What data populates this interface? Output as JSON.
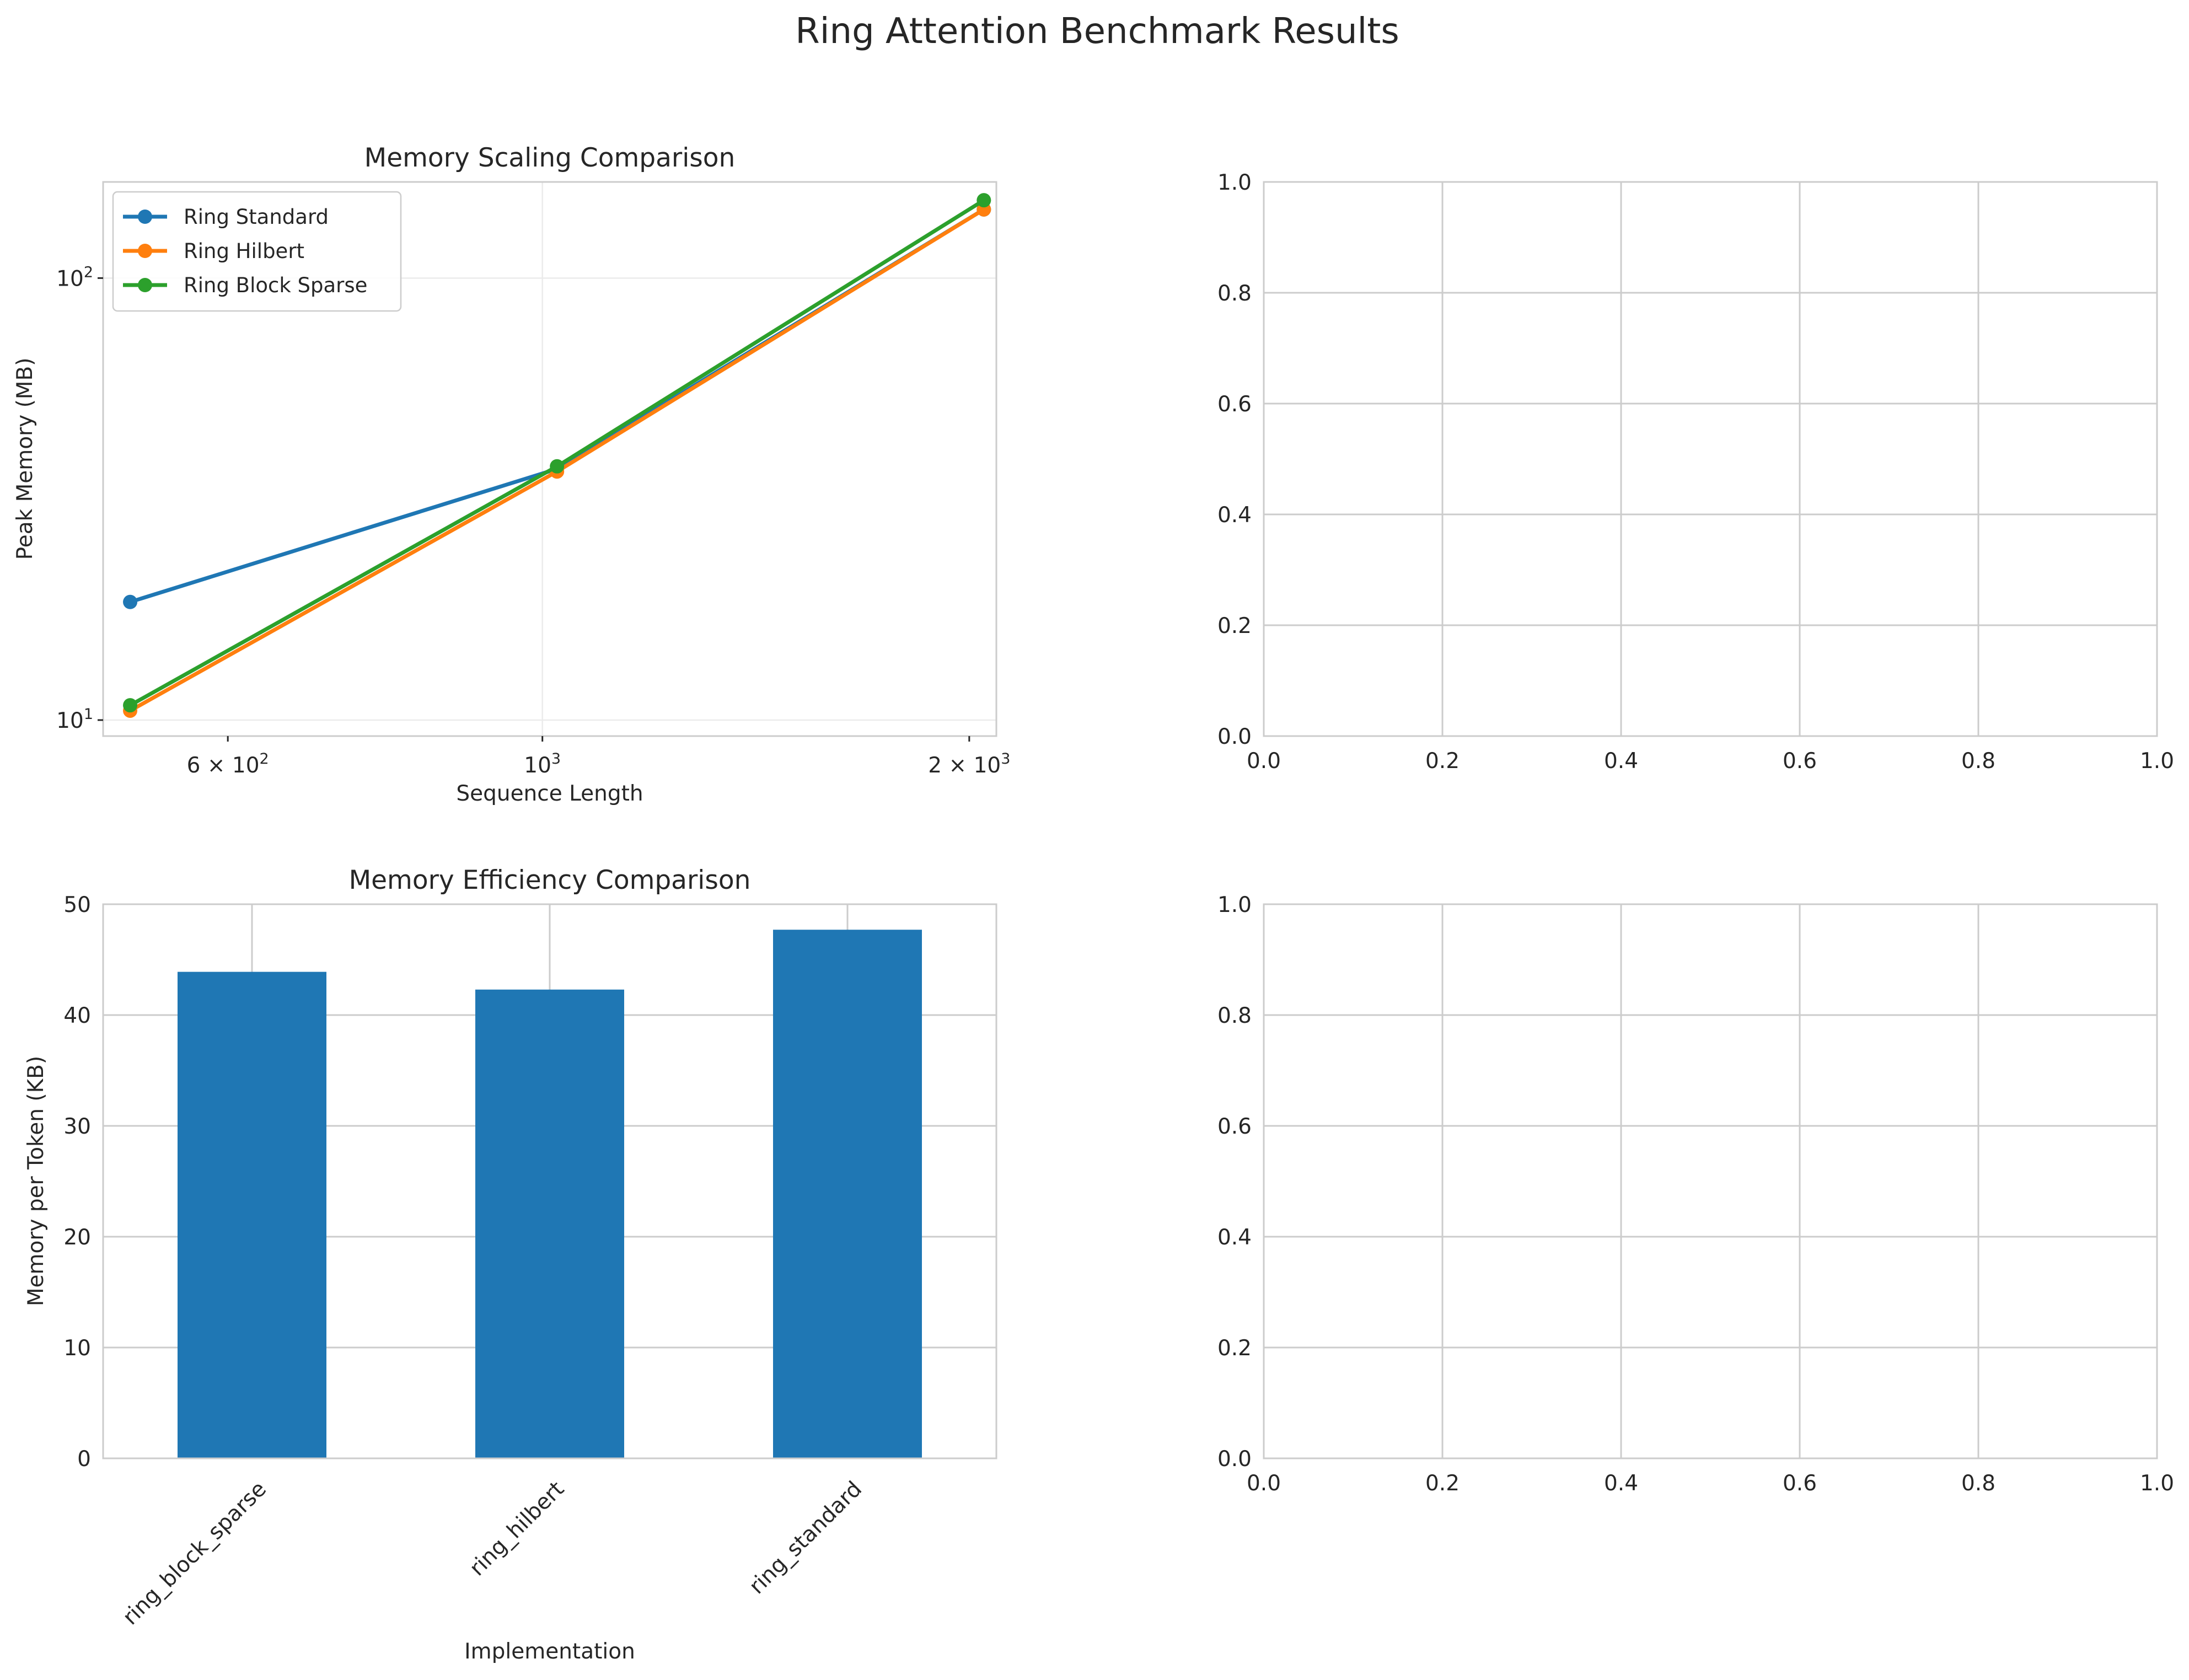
{
  "figure": {
    "title": "Ring Attention Benchmark Results"
  },
  "chart_data": [
    {
      "type": "line",
      "title": "Memory Scaling Comparison",
      "xlabel": "Sequence Length",
      "ylabel": "Peak Memory (MB)",
      "xscale": "log",
      "yscale": "log",
      "xlim": [
        490,
        2090
      ],
      "ylim": [
        9.2,
        165
      ],
      "x_tick_values": [
        600,
        1000,
        2000
      ],
      "x_tick_labels": [
        {
          "base": "6 × 10",
          "exp": "2"
        },
        {
          "base": "10",
          "exp": "3"
        },
        {
          "base": "2 × 10",
          "exp": "3"
        }
      ],
      "y_tick_values": [
        10,
        100
      ],
      "y_tick_labels": [
        {
          "base": "10",
          "exp": "1"
        },
        {
          "base": "10",
          "exp": "2"
        }
      ],
      "grid": true,
      "legend": "upper-left",
      "x": [
        512,
        1024,
        2048
      ],
      "series": [
        {
          "name": "Ring Standard",
          "color": "#1f77b4",
          "values": [
            18.5,
            37.0,
            143.0
          ]
        },
        {
          "name": "Ring Hilbert",
          "color": "#ff7f0e",
          "values": [
            10.5,
            36.5,
            143.0
          ]
        },
        {
          "name": "Ring Block Sparse",
          "color": "#2ca02c",
          "values": [
            10.8,
            37.5,
            150.0
          ]
        }
      ]
    },
    {
      "type": "empty",
      "xlim": [
        0,
        1
      ],
      "ylim": [
        0,
        1
      ],
      "x_ticks": [
        "0.0",
        "0.2",
        "0.4",
        "0.6",
        "0.8",
        "1.0"
      ],
      "y_ticks": [
        "0.0",
        "0.2",
        "0.4",
        "0.6",
        "0.8",
        "1.0"
      ],
      "grid": true
    },
    {
      "type": "bar",
      "title": "Memory Efficiency Comparison",
      "xlabel": "Implementation",
      "ylabel": "Memory per Token (KB)",
      "categories": [
        "ring_block_sparse",
        "ring_hilbert",
        "ring_standard"
      ],
      "values": [
        43.9,
        42.3,
        47.7
      ],
      "color": "#1f77b4",
      "ylim": [
        0,
        50
      ],
      "y_ticks": [
        "0",
        "10",
        "20",
        "30",
        "40",
        "50"
      ],
      "grid": true
    },
    {
      "type": "empty",
      "xlim": [
        0,
        1
      ],
      "ylim": [
        0,
        1
      ],
      "x_ticks": [
        "0.0",
        "0.2",
        "0.4",
        "0.6",
        "0.8",
        "1.0"
      ],
      "y_ticks": [
        "0.0",
        "0.2",
        "0.4",
        "0.6",
        "0.8",
        "1.0"
      ],
      "grid": true
    }
  ]
}
